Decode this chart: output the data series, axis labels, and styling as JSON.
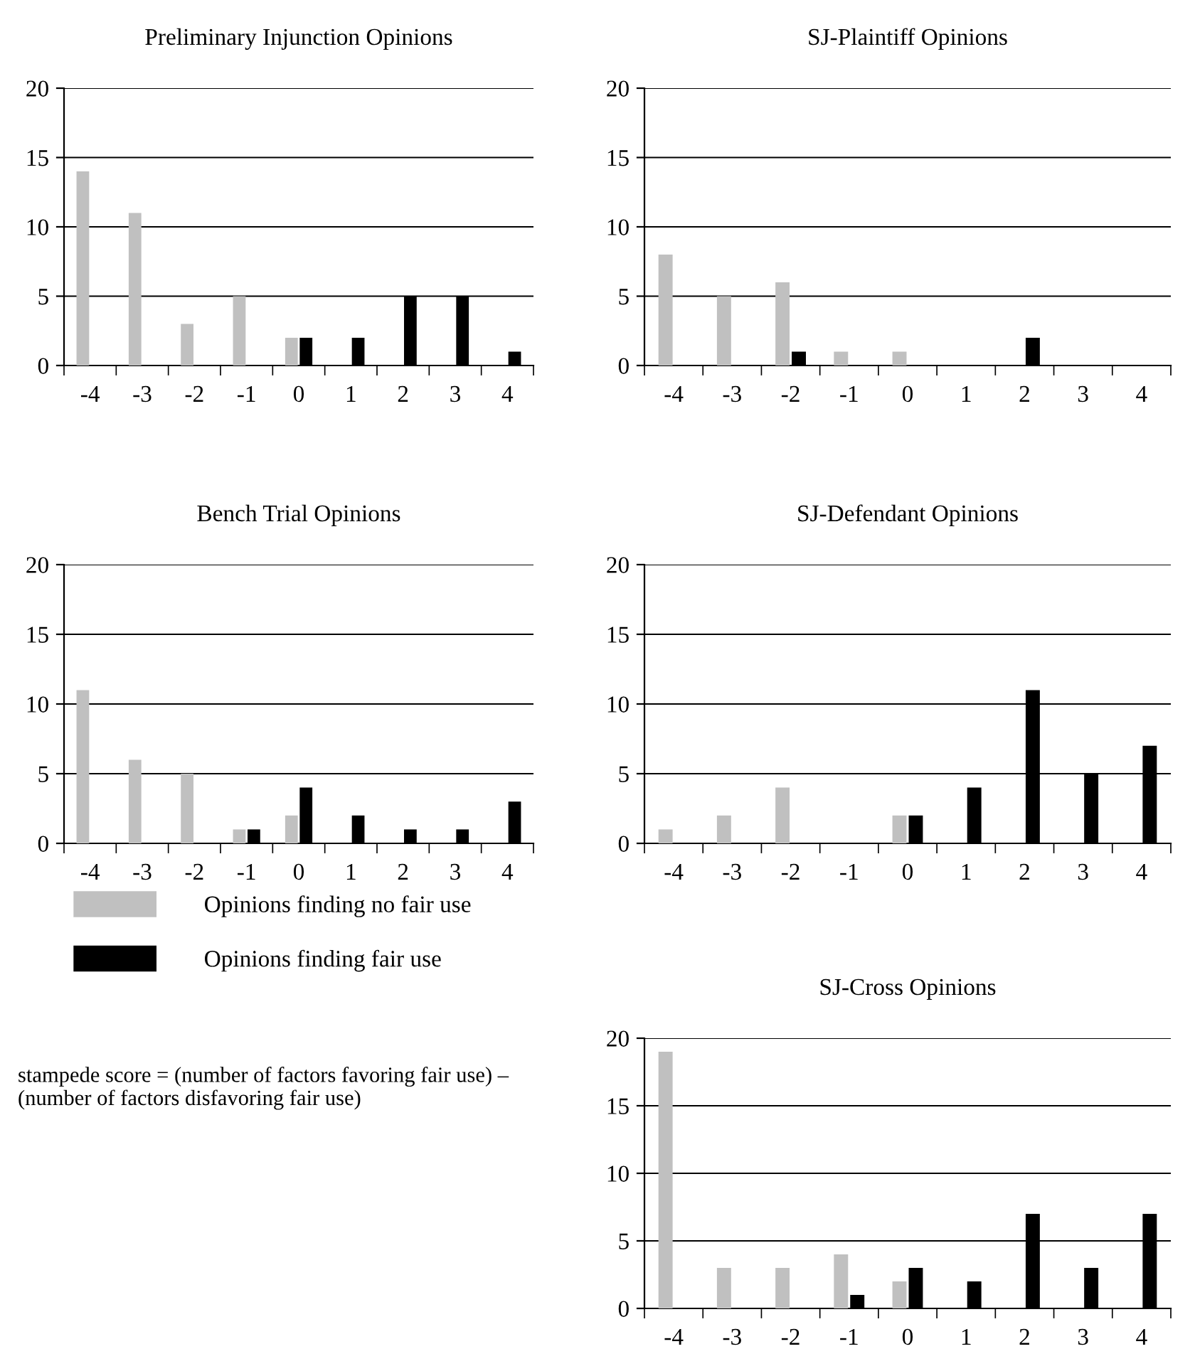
{
  "chart_data": [
    {
      "type": "bar",
      "title": "Preliminary Injunction Opinions",
      "categories": [
        "-4",
        "-3",
        "-2",
        "-1",
        "0",
        "1",
        "2",
        "3",
        "4"
      ],
      "ylim": [
        0,
        20
      ],
      "yticks": [
        0,
        5,
        10,
        15,
        20
      ],
      "grid": "y",
      "series": [
        {
          "color": "#c0c0c0",
          "values": [
            14,
            11,
            3,
            5,
            2,
            null,
            null,
            null,
            null
          ]
        },
        {
          "color": "#000000",
          "values": [
            null,
            null,
            null,
            null,
            2,
            2,
            5,
            5,
            1
          ]
        }
      ]
    },
    {
      "type": "bar",
      "title": "SJ-Plaintiff Opinions",
      "categories": [
        "-4",
        "-3",
        "-2",
        "-1",
        "0",
        "1",
        "2",
        "3",
        "4"
      ],
      "ylim": [
        0,
        20
      ],
      "yticks": [
        0,
        5,
        10,
        15,
        20
      ],
      "grid": "y",
      "series": [
        {
          "color": "#c0c0c0",
          "values": [
            8,
            5,
            6,
            1,
            1,
            null,
            null,
            null,
            null
          ]
        },
        {
          "color": "#000000",
          "values": [
            null,
            null,
            1,
            null,
            null,
            null,
            2,
            null,
            null
          ]
        }
      ]
    },
    {
      "type": "bar",
      "title": "Bench Trial Opinions",
      "categories": [
        "-4",
        "-3",
        "-2",
        "-1",
        "0",
        "1",
        "2",
        "3",
        "4"
      ],
      "ylim": [
        0,
        20
      ],
      "yticks": [
        0,
        5,
        10,
        15,
        20
      ],
      "grid": "y",
      "series": [
        {
          "color": "#c0c0c0",
          "values": [
            11,
            6,
            5,
            1,
            2,
            null,
            null,
            null,
            null
          ]
        },
        {
          "color": "#000000",
          "values": [
            null,
            null,
            null,
            1,
            4,
            2,
            1,
            1,
            3
          ]
        }
      ]
    },
    {
      "type": "bar",
      "title": "SJ-Defendant Opinions",
      "categories": [
        "-4",
        "-3",
        "-2",
        "-1",
        "0",
        "1",
        "2",
        "3",
        "4"
      ],
      "ylim": [
        0,
        20
      ],
      "yticks": [
        0,
        5,
        10,
        15,
        20
      ],
      "grid": "y",
      "series": [
        {
          "color": "#c0c0c0",
          "values": [
            1,
            2,
            4,
            null,
            2,
            null,
            null,
            null,
            null
          ]
        },
        {
          "color": "#000000",
          "values": [
            null,
            null,
            null,
            null,
            2,
            4,
            11,
            5,
            7
          ]
        }
      ]
    },
    {
      "type": "bar",
      "title": "SJ-Cross Opinions",
      "categories": [
        "-4",
        "-3",
        "-2",
        "-1",
        "0",
        "1",
        "2",
        "3",
        "4"
      ],
      "ylim": [
        0,
        20
      ],
      "yticks": [
        0,
        5,
        10,
        15,
        20
      ],
      "grid": "y",
      "legend": "left",
      "annotations": [
        "stampede score = (number of factors favoring fair use) – (number of factors disfavoring fair use)"
      ],
      "series": [
        {
          "name": "Opinions finding no fair use",
          "color": "#c0c0c0",
          "values": [
            19,
            3,
            3,
            4,
            2,
            null,
            null,
            null,
            null
          ]
        },
        {
          "name": "Opinions finding fair use",
          "color": "#000000",
          "values": [
            null,
            null,
            null,
            1,
            3,
            2,
            7,
            3,
            7
          ]
        }
      ]
    }
  ]
}
